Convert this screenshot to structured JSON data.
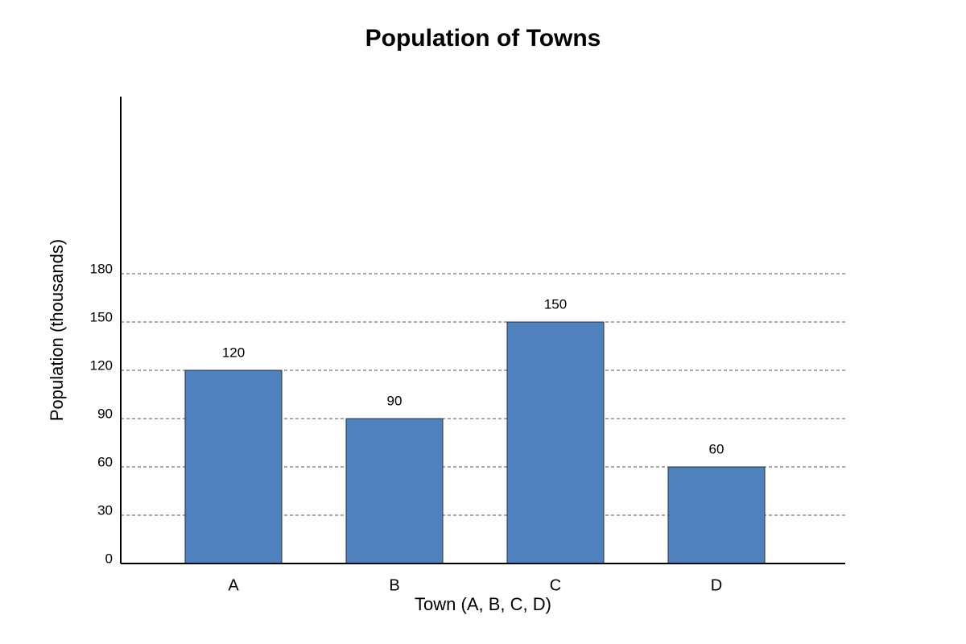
{
  "chart_data": {
    "type": "bar",
    "title": "Population of Towns",
    "x_label": "Town (A, B, C, D)",
    "y_label": "Population (thousands)",
    "categories": [
      "A",
      "B",
      "C",
      "D"
    ],
    "values": [
      120,
      90,
      150,
      60
    ],
    "color": "#4f81bd",
    "ylim": [
      0,
      290
    ],
    "yticks": [
      0,
      30,
      60,
      90,
      120,
      150,
      180
    ],
    "grid": true
  }
}
